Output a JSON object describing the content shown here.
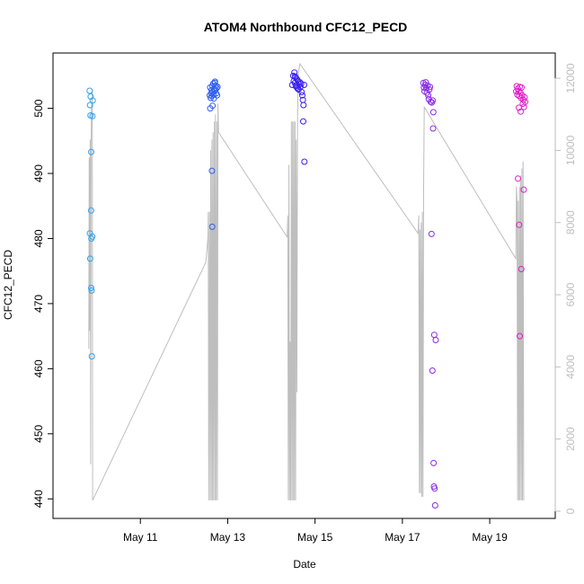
{
  "chart_data": {
    "type": "scatter",
    "title": "ATOM4 Northbound CFC12_PECD",
    "xlabel": "Date",
    "ylabel": "CFC12_PECD",
    "xlim": [
      "2016-05-09T00:00",
      "2016-05-20T12:00"
    ],
    "ylim": [
      437,
      508.5
    ],
    "y_ticks": [
      440,
      450,
      460,
      470,
      480,
      490,
      500
    ],
    "x_ticks": [
      {
        "date": "2016-05-11",
        "label": "May 11"
      },
      {
        "date": "2016-05-13",
        "label": "May 13"
      },
      {
        "date": "2016-05-15",
        "label": "May 15"
      },
      {
        "date": "2016-05-17",
        "label": "May 17"
      },
      {
        "date": "2016-05-19",
        "label": "May 19"
      }
    ],
    "right_axis": {
      "ylim": [
        -200,
        12700
      ],
      "ticks": [
        0,
        2000,
        4000,
        6000,
        8000,
        10000,
        12000
      ],
      "color": "#bebebe"
    },
    "colors": {
      "line": "#bebebe",
      "axis": "#000000"
    },
    "grid": false,
    "legend": "none",
    "point_series": [
      {
        "color": "#2fa3ee",
        "points": [
          [
            "2016-05-09T20:10",
            502.7
          ],
          [
            "2016-05-09T20:20",
            500.5
          ],
          [
            "2016-05-09T20:35",
            498.9
          ],
          [
            "2016-05-09T20:40",
            501.8
          ],
          [
            "2016-05-09T21:00",
            493.3
          ],
          [
            "2016-05-09T21:50",
            501.2
          ],
          [
            "2016-05-09T21:40",
            498.8
          ],
          [
            "2016-05-09T20:15",
            480.8
          ],
          [
            "2016-05-09T20:25",
            476.9
          ],
          [
            "2016-05-09T20:55",
            484.3
          ],
          [
            "2016-05-09T21:05",
            480.0
          ],
          [
            "2016-05-09T21:35",
            480.3
          ],
          [
            "2016-05-09T21:00",
            472.4
          ],
          [
            "2016-05-09T21:15",
            472.0
          ],
          [
            "2016-05-09T21:20",
            461.9
          ]
        ]
      },
      {
        "color": "#2f5ff0",
        "points": [
          [
            "2016-05-12T14:10",
            502.0
          ],
          [
            "2016-05-12T14:20",
            503.2
          ],
          [
            "2016-05-12T14:25",
            500.0
          ],
          [
            "2016-05-12T14:40",
            501.6
          ],
          [
            "2016-05-12T15:00",
            502.3
          ],
          [
            "2016-05-12T15:10",
            502.8
          ],
          [
            "2016-05-12T15:20",
            501.9
          ],
          [
            "2016-05-12T15:35",
            503.4
          ],
          [
            "2016-05-12T15:50",
            502.5
          ],
          [
            "2016-05-12T16:05",
            503.8
          ],
          [
            "2016-05-12T16:15",
            502.1
          ],
          [
            "2016-05-12T16:30",
            503.0
          ],
          [
            "2016-05-12T16:40",
            502.7
          ],
          [
            "2016-05-12T16:55",
            503.9
          ],
          [
            "2016-05-12T17:10",
            502.9
          ],
          [
            "2016-05-12T17:25",
            503.5
          ],
          [
            "2016-05-12T17:40",
            502.3
          ],
          [
            "2016-05-12T17:55",
            503.1
          ],
          [
            "2016-05-12T18:10",
            502.0
          ],
          [
            "2016-05-12T18:25",
            503.3
          ],
          [
            "2016-05-12T15:40",
            500.4
          ],
          [
            "2016-05-12T17:00",
            504.1
          ],
          [
            "2016-05-12T16:20",
            501.5
          ],
          [
            "2016-05-12T15:20",
            490.4
          ],
          [
            "2016-05-12T15:30",
            481.8
          ]
        ]
      },
      {
        "color": "#3a1ff0",
        "points": [
          [
            "2016-05-14T11:30",
            503.6
          ],
          [
            "2016-05-14T12:00",
            505.0
          ],
          [
            "2016-05-14T12:20",
            504.2
          ],
          [
            "2016-05-14T12:40",
            505.5
          ],
          [
            "2016-05-14T12:55",
            503.9
          ],
          [
            "2016-05-14T13:10",
            504.8
          ],
          [
            "2016-05-14T13:25",
            503.4
          ],
          [
            "2016-05-14T13:45",
            504.6
          ],
          [
            "2016-05-14T14:00",
            503.2
          ],
          [
            "2016-05-14T14:15",
            504.4
          ],
          [
            "2016-05-14T14:30",
            503.0
          ],
          [
            "2016-05-14T14:45",
            504.1
          ],
          [
            "2016-05-14T15:00",
            502.9
          ],
          [
            "2016-05-14T15:20",
            503.7
          ],
          [
            "2016-05-14T15:40",
            504.0
          ],
          [
            "2016-05-14T16:00",
            503.3
          ],
          [
            "2016-05-14T16:20",
            503.8
          ],
          [
            "2016-05-14T16:40",
            502.5
          ],
          [
            "2016-05-14T17:00",
            502.0
          ],
          [
            "2016-05-14T17:20",
            501.3
          ],
          [
            "2016-05-14T17:40",
            500.5
          ],
          [
            "2016-05-14T18:00",
            503.6
          ],
          [
            "2016-05-14T13:00",
            504.9
          ],
          [
            "2016-05-14T14:10",
            503.5
          ],
          [
            "2016-05-14T17:30",
            498.0
          ],
          [
            "2016-05-14T18:10",
            491.8
          ]
        ]
      },
      {
        "color": "#8a2be2",
        "points": [
          [
            "2016-05-17T11:30",
            503.9
          ],
          [
            "2016-05-17T11:50",
            503.2
          ],
          [
            "2016-05-17T12:10",
            502.6
          ],
          [
            "2016-05-17T12:30",
            503.6
          ],
          [
            "2016-05-17T12:50",
            504.0
          ],
          [
            "2016-05-17T13:10",
            503.1
          ],
          [
            "2016-05-17T13:30",
            502.4
          ],
          [
            "2016-05-17T13:50",
            503.5
          ],
          [
            "2016-05-17T14:10",
            502.0
          ],
          [
            "2016-05-17T14:30",
            501.4
          ],
          [
            "2016-05-17T14:50",
            502.9
          ],
          [
            "2016-05-17T15:10",
            503.3
          ],
          [
            "2016-05-17T15:30",
            501.0
          ],
          [
            "2016-05-17T16:10",
            500.9
          ],
          [
            "2016-05-17T16:40",
            501.2
          ],
          [
            "2016-05-17T17:00",
            499.4
          ],
          [
            "2016-05-17T16:50",
            496.9
          ],
          [
            "2016-05-17T16:00",
            480.7
          ],
          [
            "2016-05-17T17:30",
            465.2
          ],
          [
            "2016-05-17T18:20",
            464.4
          ],
          [
            "2016-05-17T16:30",
            459.7
          ],
          [
            "2016-05-17T17:10",
            445.5
          ],
          [
            "2016-05-17T17:20",
            441.9
          ],
          [
            "2016-05-17T17:40",
            441.6
          ],
          [
            "2016-05-17T18:00",
            439.0
          ]
        ]
      },
      {
        "color": "#e020c8",
        "points": [
          [
            "2016-05-19T14:30",
            502.6
          ],
          [
            "2016-05-19T14:50",
            503.4
          ],
          [
            "2016-05-19T15:10",
            502.1
          ],
          [
            "2016-05-19T15:30",
            503.0
          ],
          [
            "2016-05-19T15:50",
            502.6
          ],
          [
            "2016-05-19T16:10",
            501.9
          ],
          [
            "2016-05-19T16:30",
            503.3
          ],
          [
            "2016-05-19T16:50",
            502.4
          ],
          [
            "2016-05-19T17:10",
            501.6
          ],
          [
            "2016-05-19T17:30",
            503.2
          ],
          [
            "2016-05-19T17:50",
            502.0
          ],
          [
            "2016-05-19T18:10",
            500.7
          ],
          [
            "2016-05-19T18:30",
            501.3
          ],
          [
            "2016-05-19T18:50",
            500.2
          ],
          [
            "2016-05-19T19:10",
            501.7
          ],
          [
            "2016-05-19T19:30",
            501.0
          ],
          [
            "2016-05-19T17:00",
            499.5
          ],
          [
            "2016-05-19T16:00",
            500.1
          ],
          [
            "2016-05-19T15:30",
            489.2
          ],
          [
            "2016-05-19T16:10",
            482.1
          ],
          [
            "2016-05-19T17:20",
            475.3
          ],
          [
            "2016-05-19T18:40",
            487.5
          ],
          [
            "2016-05-19T16:30",
            465.0
          ]
        ]
      }
    ],
    "line_series": {
      "name": "",
      "color": "#bebebe",
      "points": [
        [
          "2016-05-09T19:40",
          4500
        ],
        [
          "2016-05-09T19:55",
          9800
        ],
        [
          "2016-05-09T20:10",
          5000
        ],
        [
          "2016-05-09T20:25",
          10300
        ],
        [
          "2016-05-09T20:40",
          1300
        ],
        [
          "2016-05-09T20:55",
          10200
        ],
        [
          "2016-05-09T21:10",
          11300
        ],
        [
          "2016-05-09T21:25",
          11400
        ],
        [
          "2016-05-09T21:35",
          11700
        ],
        [
          "2016-05-09T21:45",
          300
        ],
        [
          "2016-05-12T12:00",
          6900
        ],
        [
          "2016-05-12T13:10",
          7600
        ],
        [
          "2016-05-12T13:20",
          8300
        ],
        [
          "2016-05-12T13:35",
          300
        ],
        [
          "2016-05-12T14:00",
          8300
        ],
        [
          "2016-05-12T14:20",
          300
        ],
        [
          "2016-05-12T14:40",
          10000
        ],
        [
          "2016-05-12T15:00",
          300
        ],
        [
          "2016-05-12T15:20",
          10300
        ],
        [
          "2016-05-12T15:40",
          300
        ],
        [
          "2016-05-12T16:00",
          10500
        ],
        [
          "2016-05-12T16:20",
          300
        ],
        [
          "2016-05-12T16:40",
          10800
        ],
        [
          "2016-05-12T17:00",
          300
        ],
        [
          "2016-05-12T17:20",
          11000
        ],
        [
          "2016-05-12T17:40",
          300
        ],
        [
          "2016-05-12T18:00",
          10800
        ],
        [
          "2016-05-12T18:20",
          300
        ],
        [
          "2016-05-12T18:40",
          11300
        ],
        [
          "2016-05-12T19:00",
          10500
        ],
        [
          "2016-05-14T08:40",
          7600
        ],
        [
          "2016-05-14T09:00",
          8200
        ],
        [
          "2016-05-14T09:20",
          300
        ],
        [
          "2016-05-14T09:40",
          9600
        ],
        [
          "2016-05-14T10:00",
          300
        ],
        [
          "2016-05-14T10:20",
          4700
        ],
        [
          "2016-05-14T10:40",
          300
        ],
        [
          "2016-05-14T11:00",
          10800
        ],
        [
          "2016-05-14T11:20",
          300
        ],
        [
          "2016-05-14T11:40",
          10800
        ],
        [
          "2016-05-14T12:00",
          300
        ],
        [
          "2016-05-14T12:20",
          10800
        ],
        [
          "2016-05-14T12:40",
          300
        ],
        [
          "2016-05-14T13:00",
          10800
        ],
        [
          "2016-05-14T13:20",
          300
        ],
        [
          "2016-05-14T13:40",
          10300
        ],
        [
          "2016-05-14T14:00",
          3300
        ],
        [
          "2016-05-14T14:20",
          10500
        ],
        [
          "2016-05-14T14:40",
          11800
        ],
        [
          "2016-05-14T15:00",
          12200
        ],
        [
          "2016-05-14T15:40",
          12400
        ],
        [
          "2016-05-17T08:40",
          7700
        ],
        [
          "2016-05-17T09:00",
          8200
        ],
        [
          "2016-05-17T09:20",
          500
        ],
        [
          "2016-05-17T09:40",
          7800
        ],
        [
          "2016-05-17T10:00",
          500
        ],
        [
          "2016-05-17T10:20",
          8000
        ],
        [
          "2016-05-17T10:40",
          400
        ],
        [
          "2016-05-17T11:00",
          8300
        ],
        [
          "2016-05-17T11:20",
          400
        ],
        [
          "2016-05-17T11:40",
          9000
        ],
        [
          "2016-05-17T12:00",
          11200
        ],
        [
          "2016-05-19T14:20",
          7000
        ],
        [
          "2016-05-19T14:40",
          9000
        ],
        [
          "2016-05-19T15:00",
          8600
        ],
        [
          "2016-05-19T15:20",
          300
        ],
        [
          "2016-05-19T15:40",
          8600
        ],
        [
          "2016-05-19T16:00",
          300
        ],
        [
          "2016-05-19T16:20",
          9000
        ],
        [
          "2016-05-19T16:40",
          300
        ],
        [
          "2016-05-19T17:00",
          9300
        ],
        [
          "2016-05-19T17:20",
          300
        ],
        [
          "2016-05-19T17:40",
          9500
        ],
        [
          "2016-05-19T18:00",
          300
        ],
        [
          "2016-05-19T18:20",
          9700
        ],
        [
          "2016-05-19T18:40",
          300
        ]
      ]
    }
  }
}
